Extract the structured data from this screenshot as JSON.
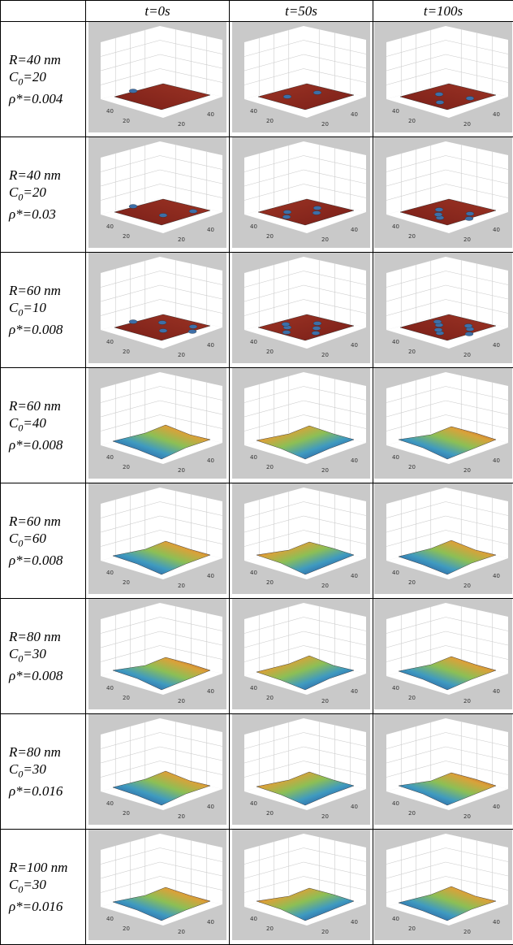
{
  "header": [
    "t=0s",
    "t=50s",
    "t=100s"
  ],
  "plot_axis_labels": {
    "left": [
      "40",
      "20"
    ],
    "right": [
      "20",
      "40"
    ]
  },
  "rows": [
    {
      "r": "R=40 nm",
      "c": [
        "C",
        "0",
        "=20"
      ],
      "rho": "ρ*=0.004"
    },
    {
      "r": "R=40 nm",
      "c": [
        "C",
        "0",
        "=20"
      ],
      "rho": "ρ*=0.03"
    },
    {
      "r": "R=60 nm",
      "c": [
        "C",
        "0",
        "=10"
      ],
      "rho": "ρ*=0.008"
    },
    {
      "r": "R=60 nm",
      "c": [
        "C",
        "0",
        "=40"
      ],
      "rho": "ρ*=0.008"
    },
    {
      "r": "R=60 nm",
      "c": [
        "C",
        "0",
        "=60"
      ],
      "rho": "ρ*=0.008"
    },
    {
      "r": "R=80 nm",
      "c": [
        "C",
        "0",
        "=30"
      ],
      "rho": "ρ*=0.008"
    },
    {
      "r": "R=80 nm",
      "c": [
        "C",
        "0",
        "=30"
      ],
      "rho": "ρ*=0.016"
    },
    {
      "r": "R=100 nm",
      "c": [
        "C",
        "0",
        "=30"
      ],
      "rho": "ρ*=0.016"
    }
  ]
}
